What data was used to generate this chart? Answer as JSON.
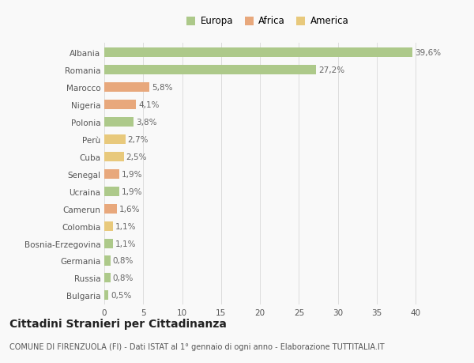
{
  "categories": [
    "Albania",
    "Romania",
    "Marocco",
    "Nigeria",
    "Polonia",
    "Perù",
    "Cuba",
    "Senegal",
    "Ucraina",
    "Camerun",
    "Colombia",
    "Bosnia-Erzegovina",
    "Germania",
    "Russia",
    "Bulgaria"
  ],
  "values": [
    39.6,
    27.2,
    5.8,
    4.1,
    3.8,
    2.7,
    2.5,
    1.9,
    1.9,
    1.6,
    1.1,
    1.1,
    0.8,
    0.8,
    0.5
  ],
  "labels": [
    "39,6%",
    "27,2%",
    "5,8%",
    "4,1%",
    "3,8%",
    "2,7%",
    "2,5%",
    "1,9%",
    "1,9%",
    "1,6%",
    "1,1%",
    "1,1%",
    "0,8%",
    "0,8%",
    "0,5%"
  ],
  "colors": [
    "#adc98a",
    "#adc98a",
    "#e8a87c",
    "#e8a87c",
    "#adc98a",
    "#e8c97c",
    "#e8c97c",
    "#e8a87c",
    "#adc98a",
    "#e8a87c",
    "#e8c97c",
    "#adc98a",
    "#adc98a",
    "#adc98a",
    "#adc98a"
  ],
  "legend_labels": [
    "Europa",
    "Africa",
    "America"
  ],
  "legend_colors": [
    "#adc98a",
    "#e8a87c",
    "#e8c97c"
  ],
  "title": "Cittadini Stranieri per Cittadinanza",
  "subtitle": "COMUNE DI FIRENZUOLA (FI) - Dati ISTAT al 1° gennaio di ogni anno - Elaborazione TUTTITALIA.IT",
  "xlim": [
    0,
    42
  ],
  "xticks": [
    0,
    5,
    10,
    15,
    20,
    25,
    30,
    35,
    40
  ],
  "bar_height": 0.55,
  "background_color": "#f9f9f9",
  "grid_color": "#dddddd",
  "label_fontsize": 7.5,
  "tick_fontsize": 7.5,
  "ytick_fontsize": 7.5,
  "legend_fontsize": 8.5,
  "title_fontsize": 10,
  "subtitle_fontsize": 7
}
